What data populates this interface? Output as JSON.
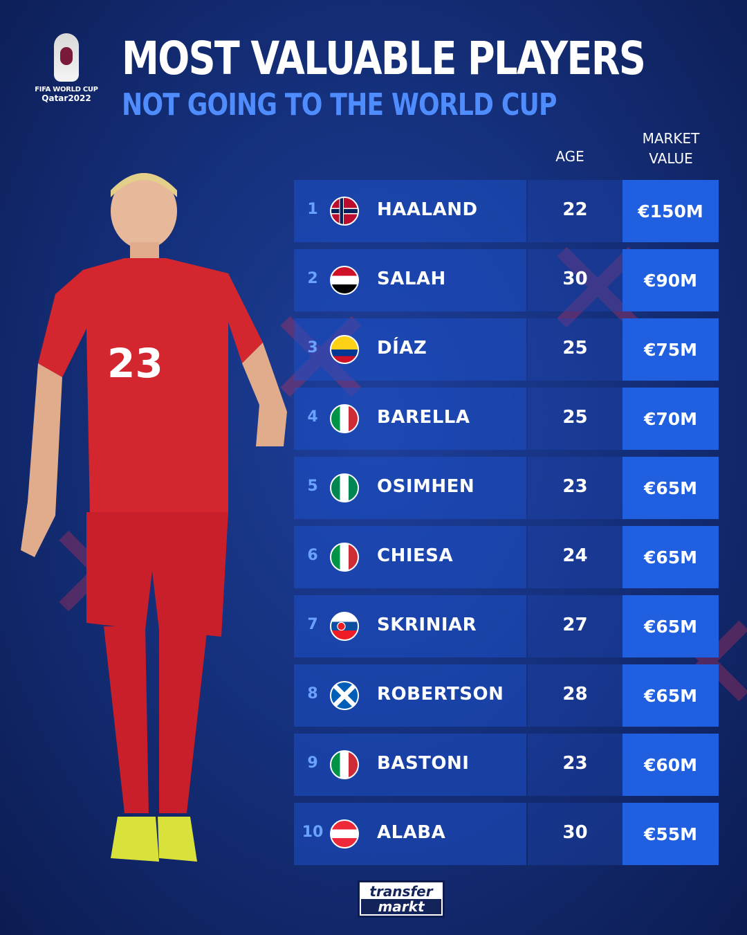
{
  "logo": {
    "line1": "FIFA WORLD CUP",
    "line2": "Qatar2022"
  },
  "title": "MOST VALUABLE PLAYERS",
  "subtitle": "NOT GOING TO THE WORLD CUP",
  "headers": {
    "age": "AGE",
    "market_value_1": "MARKET",
    "market_value_2": "VALUE"
  },
  "colors": {
    "background": "#15307c",
    "accent": "#4f8dff",
    "value_box": "#1f5fe0"
  },
  "players": [
    {
      "rank": "1",
      "flag": "norway",
      "name": "HAALAND",
      "age": "22",
      "value": "€150M"
    },
    {
      "rank": "2",
      "flag": "egypt",
      "name": "SALAH",
      "age": "30",
      "value": "€90M"
    },
    {
      "rank": "3",
      "flag": "colombia",
      "name": "DÍAZ",
      "age": "25",
      "value": "€75M"
    },
    {
      "rank": "4",
      "flag": "italy",
      "name": "BARELLA",
      "age": "25",
      "value": "€70M"
    },
    {
      "rank": "5",
      "flag": "nigeria",
      "name": "OSIMHEN",
      "age": "23",
      "value": "€65M"
    },
    {
      "rank": "6",
      "flag": "italy",
      "name": "CHIESA",
      "age": "24",
      "value": "€65M"
    },
    {
      "rank": "7",
      "flag": "slovakia",
      "name": "SKRINIAR",
      "age": "27",
      "value": "€65M"
    },
    {
      "rank": "8",
      "flag": "scotland",
      "name": "ROBERTSON",
      "age": "28",
      "value": "€65M"
    },
    {
      "rank": "9",
      "flag": "italy",
      "name": "BASTONI",
      "age": "23",
      "value": "€60M"
    },
    {
      "rank": "10",
      "flag": "austria",
      "name": "ALABA",
      "age": "30",
      "value": "€55M"
    }
  ],
  "player_image": {
    "shirt_number": "23"
  },
  "footer": {
    "line1": "transfer",
    "line2": "markt"
  }
}
